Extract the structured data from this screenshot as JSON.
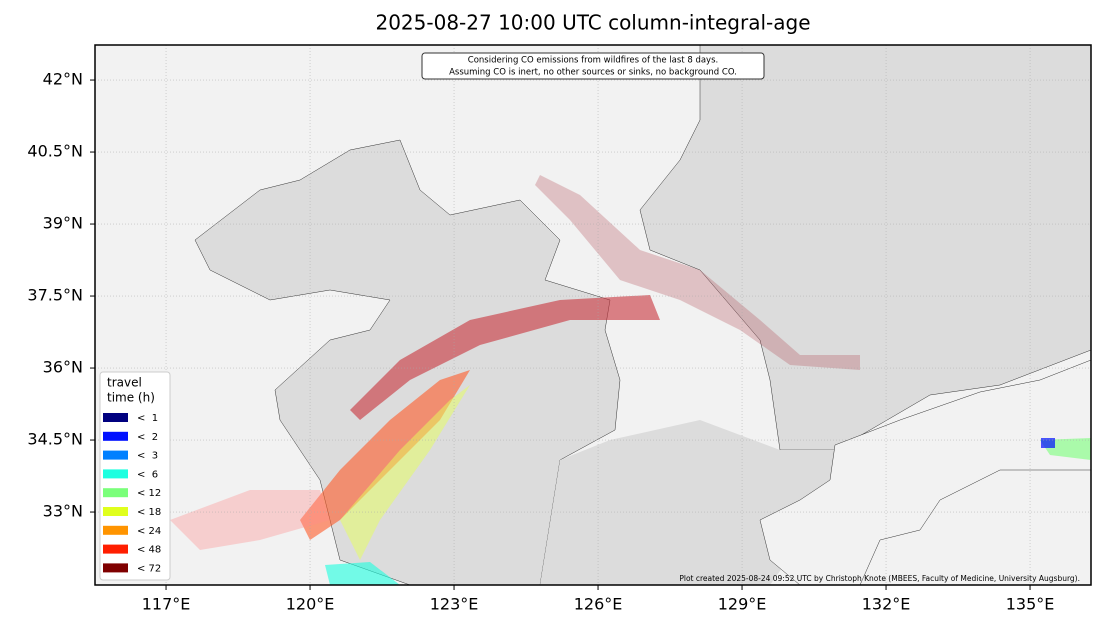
{
  "chart_data": {
    "type": "map",
    "title": "2025-08-27 10:00 UTC column-integral-age",
    "annotation": [
      "Considering CO emissions from wildfires of the last 8 days.",
      "Assuming CO is inert, no other sources or sinks, no background CO."
    ],
    "xlim": [
      115.52,
      136.27
    ],
    "ylim": [
      31.48,
      42.73
    ],
    "xticks": [
      {
        "value": 117,
        "label": "117°E"
      },
      {
        "value": 120,
        "label": "120°E"
      },
      {
        "value": 123,
        "label": "123°E"
      },
      {
        "value": 126,
        "label": "126°E"
      },
      {
        "value": 129,
        "label": "129°E"
      },
      {
        "value": 132,
        "label": "132°E"
      },
      {
        "value": 135,
        "label": "135°E"
      }
    ],
    "yticks": [
      {
        "value": 33,
        "label": "33°N"
      },
      {
        "value": 34.5,
        "label": "34.5°N"
      },
      {
        "value": 36,
        "label": "36°N"
      },
      {
        "value": 37.5,
        "label": "37.5°N"
      },
      {
        "value": 39,
        "label": "39°N"
      },
      {
        "value": 40.5,
        "label": "40.5°N"
      },
      {
        "value": 42,
        "label": "42°N"
      }
    ],
    "grid": true,
    "legend_title": [
      "travel",
      "time (h)"
    ],
    "series": [
      {
        "name": "<  1",
        "color": "#00007f"
      },
      {
        "name": "<  2",
        "color": "#0010ff"
      },
      {
        "name": "<  3",
        "color": "#0080ff"
      },
      {
        "name": "<  6",
        "color": "#1dffe0"
      },
      {
        "name": "< 12",
        "color": "#7aff7a"
      },
      {
        "name": "< 18",
        "color": "#e0ff1d"
      },
      {
        "name": "< 24",
        "color": "#ff9400"
      },
      {
        "name": "< 48",
        "color": "#ff1e00"
      },
      {
        "name": "< 72",
        "color": "#7f0000"
      }
    ],
    "credit": "Plot created 2025-08-24 09:52 UTC by Christoph Knote (MBEES, Faculty of Medicine, University Augsburg)."
  }
}
